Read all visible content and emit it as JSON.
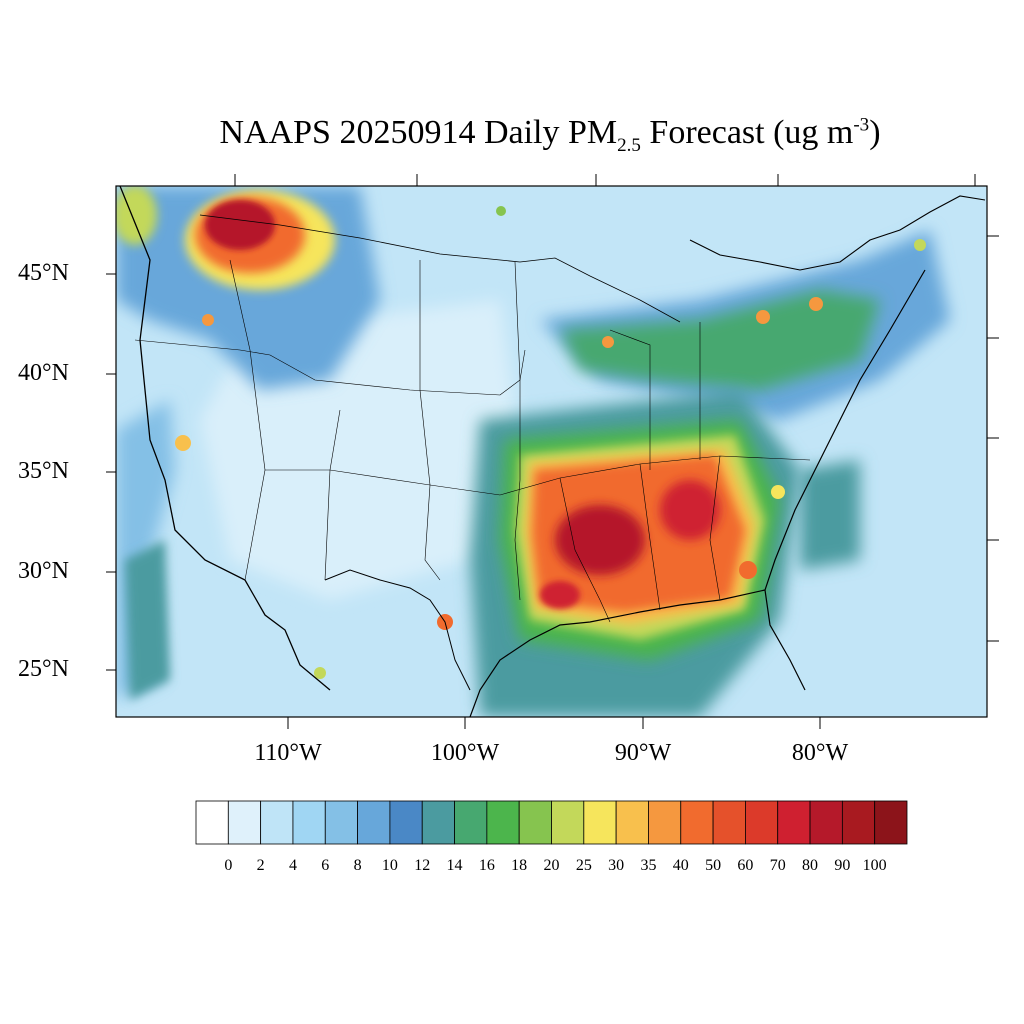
{
  "title": {
    "prefix": "NAAPS 20250914 Daily PM",
    "subscript": "2.5",
    "middle": " Forecast (ug m",
    "superscript": "-3",
    "suffix": ")"
  },
  "axes": {
    "lat_labels": [
      "45°N",
      "40°N",
      "35°N",
      "30°N",
      "25°N"
    ],
    "lon_labels": [
      "110°W",
      "100°W",
      "90°W",
      "80°W"
    ]
  },
  "colorbar": {
    "labels": [
      "0",
      "2",
      "4",
      "6",
      "8",
      "10",
      "12",
      "14",
      "16",
      "18",
      "20",
      "25",
      "30",
      "35",
      "40",
      "50",
      "60",
      "70",
      "80",
      "90",
      "100"
    ],
    "colors": [
      "#ffffff",
      "#dff1fb",
      "#bfe4f7",
      "#a0d6f3",
      "#84c0e6",
      "#67a7da",
      "#4a88c6",
      "#4b9ba0",
      "#47a870",
      "#4cb54c",
      "#86c44f",
      "#c3d85a",
      "#f6e55c",
      "#f8c04d",
      "#f5983f",
      "#f16b2e",
      "#e5512b",
      "#dc3a2a",
      "#cf2030",
      "#b5192a",
      "#a81a20",
      "#8c141a"
    ]
  },
  "map": {
    "background_color": "#c2e5f7",
    "hotspot_region": "Southeastern United States",
    "secondary_hotspot": "Pacific Northwest / Montana border"
  }
}
